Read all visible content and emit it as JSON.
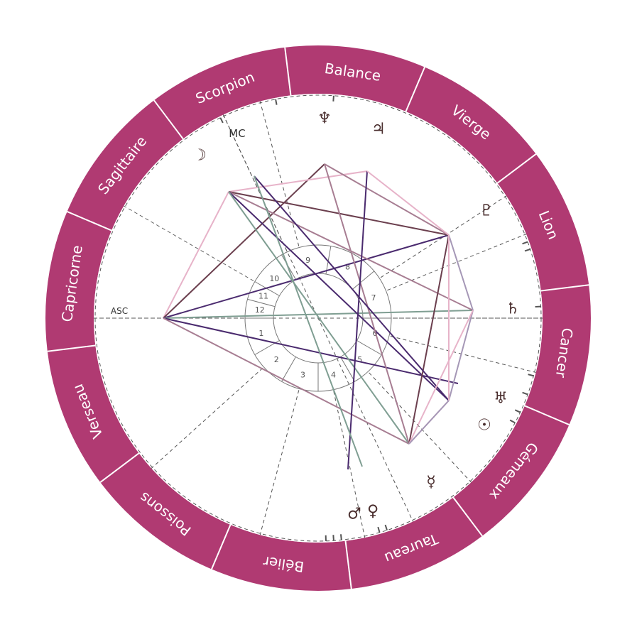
{
  "colors": {
    "zodiac_band": "#b03a72",
    "band_line": "#ffffff",
    "house_line": "#555555",
    "axis_line": "#555555",
    "planet_glyph": "#4a2e2e",
    "aspect_dark": "#4a2a6e",
    "aspect_brown": "#6b3f4e",
    "aspect_mauve": "#a77d92",
    "aspect_pink": "#e7b3c9",
    "aspect_green": "#7f9e92",
    "aspect_lavender": "#a597b6"
  },
  "zodiac_signs": [
    "Capricorne",
    "Sagittaire",
    "Scorpion",
    "Balance",
    "Vierge",
    "Lion",
    "Cancer",
    "Gémeaux",
    "Taureau",
    "Bélier",
    "Poissons",
    "Verseau"
  ],
  "axes": {
    "asc": "ASC",
    "mc": "MC"
  },
  "houses": [
    "1",
    "2",
    "3",
    "4",
    "5",
    "6",
    "7",
    "8",
    "9",
    "10",
    "11",
    "12"
  ],
  "planets": [
    {
      "name": "moon",
      "glyph": "☽"
    },
    {
      "name": "neptune",
      "glyph": "♆"
    },
    {
      "name": "jupiter",
      "glyph": "♃"
    },
    {
      "name": "pluto",
      "glyph": "♇"
    },
    {
      "name": "saturn",
      "glyph": "♄"
    },
    {
      "name": "uranus",
      "glyph": "♅"
    },
    {
      "name": "sun",
      "glyph": "☉"
    },
    {
      "name": "mercury",
      "glyph": "☿"
    },
    {
      "name": "venus",
      "glyph": "♀"
    },
    {
      "name": "mars",
      "glyph": "♂"
    }
  ]
}
